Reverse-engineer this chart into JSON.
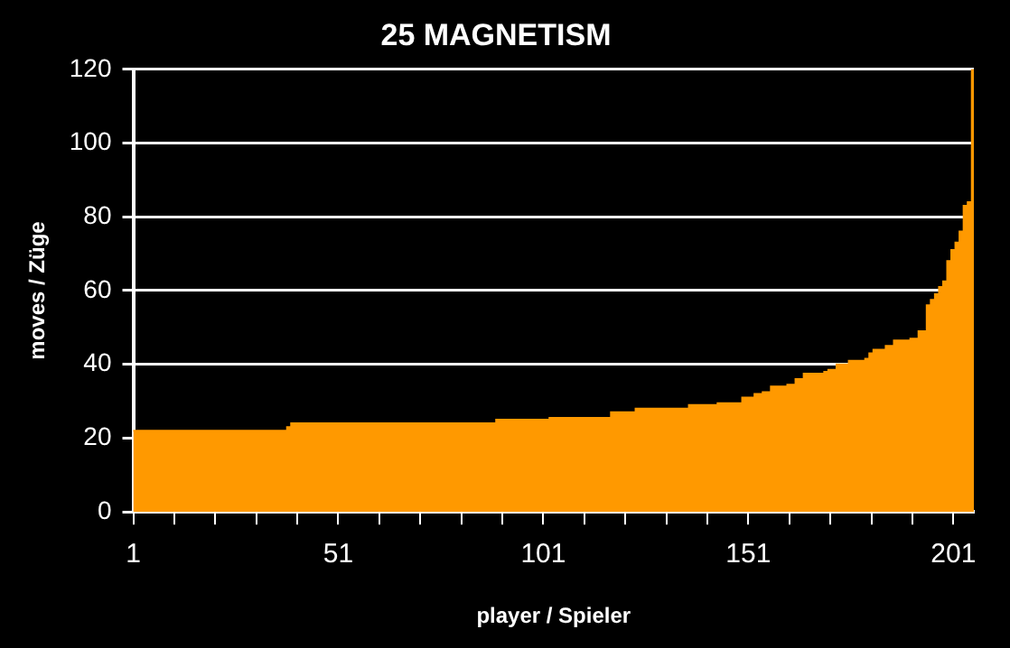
{
  "chart_data": {
    "type": "area",
    "title": "25 MAGNETISM",
    "xlabel": "player / Spieler",
    "ylabel": "moves / Züge",
    "categories": [
      "1",
      null,
      null,
      null,
      null,
      null,
      null,
      null,
      null,
      null,
      null,
      null,
      null,
      null,
      null,
      null,
      null,
      null,
      null,
      null,
      null,
      null,
      null,
      null,
      null,
      null,
      null,
      null,
      null,
      null,
      null,
      null,
      null,
      null,
      null,
      null,
      null,
      null,
      null,
      null,
      null,
      null,
      null,
      null,
      null,
      null,
      null,
      null,
      null,
      null,
      "51",
      null,
      null,
      null,
      null,
      null,
      null,
      null,
      null,
      null,
      null,
      null,
      null,
      null,
      null,
      null,
      null,
      null,
      null,
      null,
      null,
      null,
      null,
      null,
      null,
      null,
      null,
      null,
      null,
      null,
      null,
      null,
      null,
      null,
      null,
      null,
      null,
      null,
      null,
      null,
      null,
      null,
      null,
      null,
      null,
      null,
      null,
      null,
      null,
      null,
      "101",
      null,
      null,
      null,
      null,
      null,
      null,
      null,
      null,
      null,
      null,
      null,
      null,
      null,
      null,
      null,
      null,
      null,
      null,
      null,
      null,
      null,
      null,
      null,
      null,
      null,
      null,
      null,
      null,
      null,
      null,
      null,
      null,
      null,
      null,
      null,
      null,
      null,
      null,
      null,
      null,
      null,
      null,
      null,
      null,
      null,
      null,
      null,
      null,
      null,
      "151",
      null,
      null,
      null,
      null,
      null,
      null,
      null,
      null,
      null,
      null,
      null,
      null,
      null,
      null,
      null,
      null,
      null,
      null,
      null,
      null,
      null,
      null,
      null,
      null,
      null,
      null,
      null,
      null,
      null,
      null,
      null,
      null,
      null,
      null,
      null,
      null,
      null,
      null,
      null,
      null,
      null,
      null,
      null,
      null,
      null,
      null,
      null,
      null,
      null,
      "201",
      null,
      null,
      null,
      null,
      null
    ],
    "values": [
      22,
      22,
      22,
      22,
      22,
      22,
      22,
      22,
      22,
      22,
      22,
      22,
      22,
      22,
      22,
      22,
      22,
      22,
      22,
      22,
      22,
      22,
      22,
      22,
      22,
      22,
      22,
      22,
      22,
      22,
      22,
      22,
      22,
      22,
      22,
      22,
      22,
      22,
      23,
      24,
      24,
      24,
      24,
      24,
      24,
      24,
      24,
      24,
      24,
      24,
      24,
      24,
      24,
      24,
      24,
      24,
      24,
      24,
      24,
      24,
      24,
      24,
      24,
      24,
      24,
      24,
      24,
      24,
      24,
      24,
      24,
      24,
      24,
      24,
      24,
      24,
      24,
      24,
      24,
      24,
      24,
      24,
      24,
      24,
      24,
      24,
      24,
      24,
      24,
      25,
      25,
      25,
      25,
      25,
      25,
      25,
      25,
      25,
      25,
      25,
      25,
      25,
      25.5,
      25.5,
      25.5,
      25.5,
      25.5,
      25.5,
      25.5,
      25.5,
      25.5,
      25.5,
      25.5,
      25.5,
      25.5,
      25.5,
      25.5,
      27,
      27,
      27,
      27,
      27,
      27,
      28,
      28,
      28,
      28,
      28,
      28,
      28,
      28,
      28,
      28,
      28,
      28,
      28,
      29,
      29,
      29,
      29,
      29,
      29,
      29,
      29.5,
      29.5,
      29.5,
      29.5,
      29.5,
      29.5,
      31,
      31,
      31,
      32,
      32,
      32.5,
      32.5,
      34,
      34,
      34,
      34,
      34.5,
      34.5,
      36,
      36,
      37.5,
      37.5,
      37.5,
      37.5,
      37.5,
      38,
      38.5,
      38.5,
      40,
      40,
      40,
      41,
      41,
      41,
      41,
      41.5,
      43,
      44,
      44,
      44,
      45,
      45,
      46.5,
      46.5,
      46.5,
      46.5,
      47,
      47,
      49,
      49,
      56,
      57.5,
      59,
      61,
      62.5,
      68,
      71,
      73,
      76,
      83,
      84,
      120
    ],
    "color": "#ff9900",
    "ylim": [
      0,
      120
    ],
    "yticks": [
      0,
      20,
      40,
      60,
      80,
      100,
      120
    ],
    "grid": "y"
  }
}
